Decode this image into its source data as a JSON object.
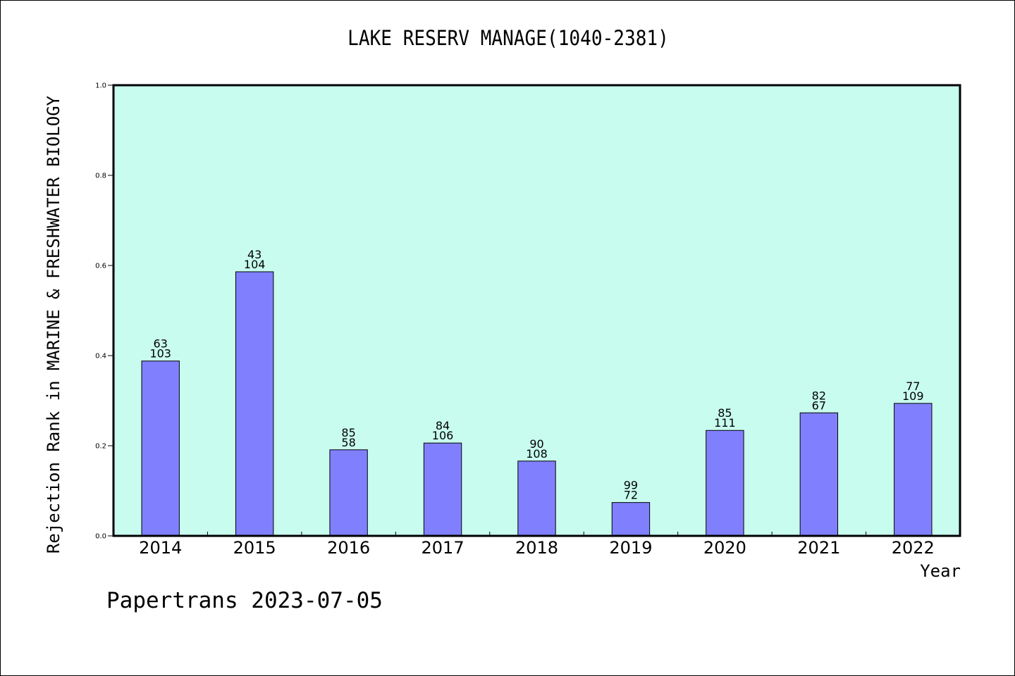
{
  "chart_data": {
    "type": "bar",
    "title": "LAKE RESERV MANAGE(1040-2381)",
    "xlabel": "Year",
    "ylabel": "Rejection Rank in MARINE & FRESHWATER BIOLOGY",
    "categories": [
      "2014",
      "2015",
      "2016",
      "2017",
      "2018",
      "2019",
      "2020",
      "2021",
      "2022"
    ],
    "values": [
      0.388,
      0.586,
      0.191,
      0.206,
      0.166,
      0.074,
      0.234,
      0.273,
      0.294
    ],
    "bar_labels_top": [
      "63",
      "43",
      "85",
      "84",
      "90",
      "99",
      "85",
      "82",
      "77"
    ],
    "bar_labels_bottom": [
      "103",
      "104",
      "58",
      "106",
      "108",
      "72",
      "111",
      "67",
      "109"
    ],
    "yticks": [
      "0.0",
      "0.2",
      "0.4",
      "0.6",
      "0.8",
      "1.0"
    ],
    "ylim": [
      0,
      1
    ],
    "grid": false,
    "legend": "none",
    "colors": {
      "plot_background": "#c8fcee",
      "bar_fill": "#8080ff",
      "bar_stroke": "#000000",
      "axis": "#000000"
    }
  },
  "footer": "Papertrans 2023-07-05"
}
